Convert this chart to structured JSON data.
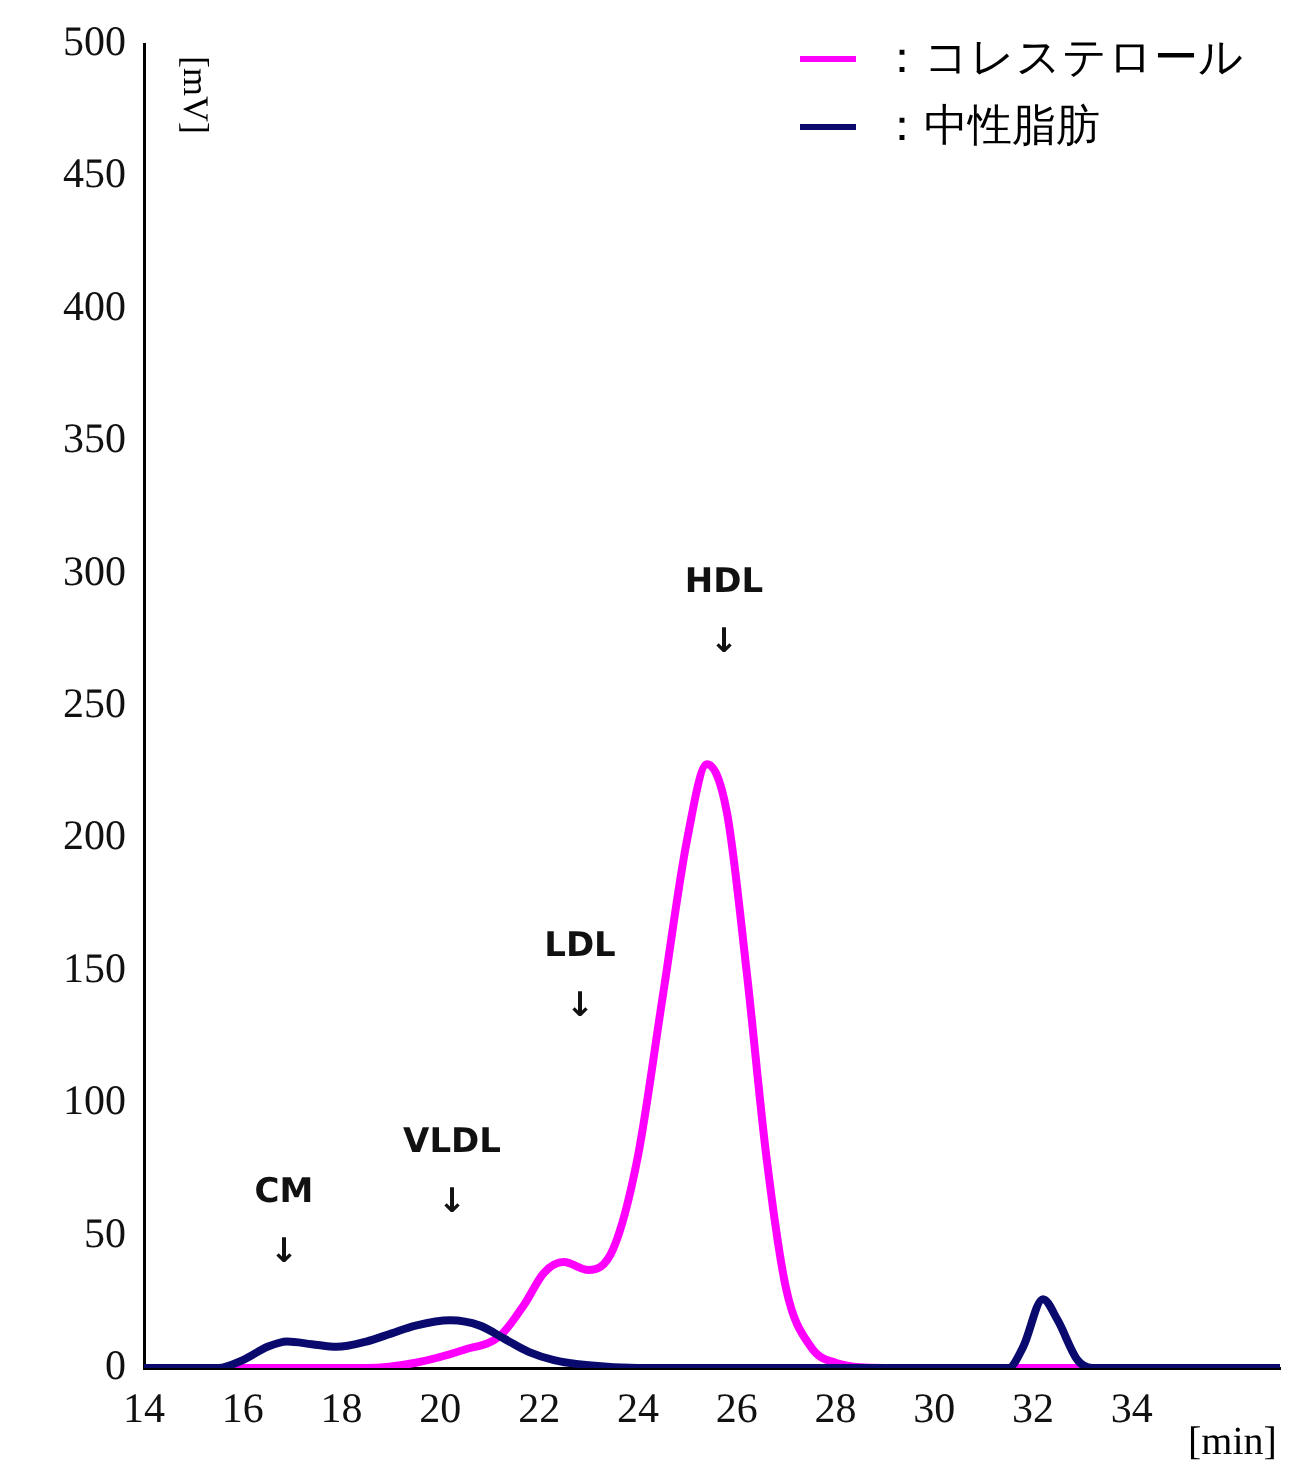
{
  "chart_data": {
    "type": "line",
    "xlabel": "[min]",
    "ylabel": "[mV]",
    "xlim": [
      14,
      37
    ],
    "xticks": [
      14,
      16,
      18,
      20,
      22,
      24,
      26,
      28,
      30,
      32,
      34
    ],
    "ylim": [
      0,
      500
    ],
    "yticks": [
      0,
      50,
      100,
      150,
      200,
      250,
      300,
      350,
      400,
      450,
      500
    ],
    "grid": false,
    "legend": "top right",
    "marker": "none",
    "line_style": "solid",
    "series": [
      {
        "name": "：中性脂肪",
        "color": "#0a0a6e",
        "x": [
          14,
          15.5,
          16,
          16.5,
          16.9,
          17.4,
          17.9,
          18.5,
          19,
          19.5,
          20.2,
          20.8,
          21.3,
          21.8,
          22.3,
          23,
          24,
          28,
          31.5,
          31.8,
          32.2,
          32.5,
          32.9,
          33.2,
          37
        ],
        "values": [
          0,
          0,
          3,
          8,
          10,
          9,
          8,
          10,
          13,
          16,
          18,
          16,
          11,
          6,
          3,
          1,
          0,
          0,
          0,
          8,
          26,
          18,
          3,
          0,
          0
        ]
      },
      {
        "name": "：コレステロール",
        "color": "#ff00ff",
        "x": [
          14,
          18.5,
          19.5,
          20.5,
          21.2,
          21.7,
          22.1,
          22.5,
          23,
          23.5,
          24,
          24.5,
          25,
          25.4,
          25.8,
          26.2,
          26.6,
          27,
          27.5,
          28,
          29,
          37
        ],
        "values": [
          0,
          0,
          2,
          7,
          12,
          24,
          36,
          40,
          37,
          45,
          80,
          140,
          200,
          228,
          210,
          150,
          80,
          30,
          8,
          2,
          0,
          0
        ]
      }
    ],
    "annotations": [
      "CM\n↓",
      "VLDL\n↓",
      "LDL\n↓",
      "HDL\n↓"
    ]
  }
}
